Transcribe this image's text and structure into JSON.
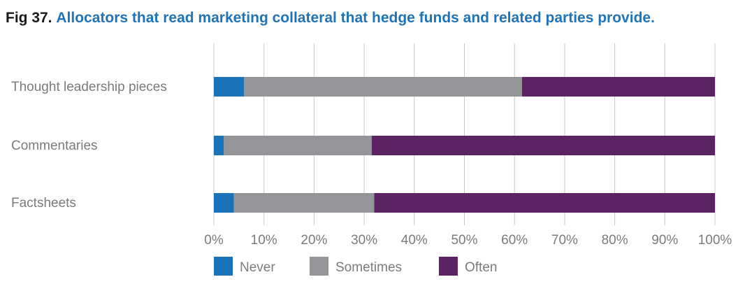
{
  "figure": {
    "number": "Fig 37.",
    "title": "Allocators that read marketing collateral that hedge funds and related parties provide."
  },
  "colors": {
    "Never": "#1a73b8",
    "Sometimes": "#939598",
    "Often": "#5d2263",
    "grid": "#c9c9c9"
  },
  "chart_data": {
    "type": "bar",
    "orientation": "horizontal",
    "stacked": true,
    "title": "Allocators that read marketing collateral that hedge funds and related parties provide.",
    "categories": [
      "Thought leadership pieces",
      "Commentaries",
      "Factsheets"
    ],
    "series": [
      {
        "name": "Never",
        "values": [
          6,
          2,
          4
        ]
      },
      {
        "name": "Sometimes",
        "values": [
          55.5,
          29.5,
          28
        ]
      },
      {
        "name": "Often",
        "values": [
          38.5,
          68.5,
          68
        ]
      }
    ],
    "xlim": [
      0,
      100
    ],
    "xticks": [
      "0%",
      "10%",
      "20%",
      "30%",
      "40%",
      "50%",
      "60%",
      "70%",
      "80%",
      "90%",
      "100%"
    ],
    "grid": "vertical",
    "legend": "bottom"
  }
}
